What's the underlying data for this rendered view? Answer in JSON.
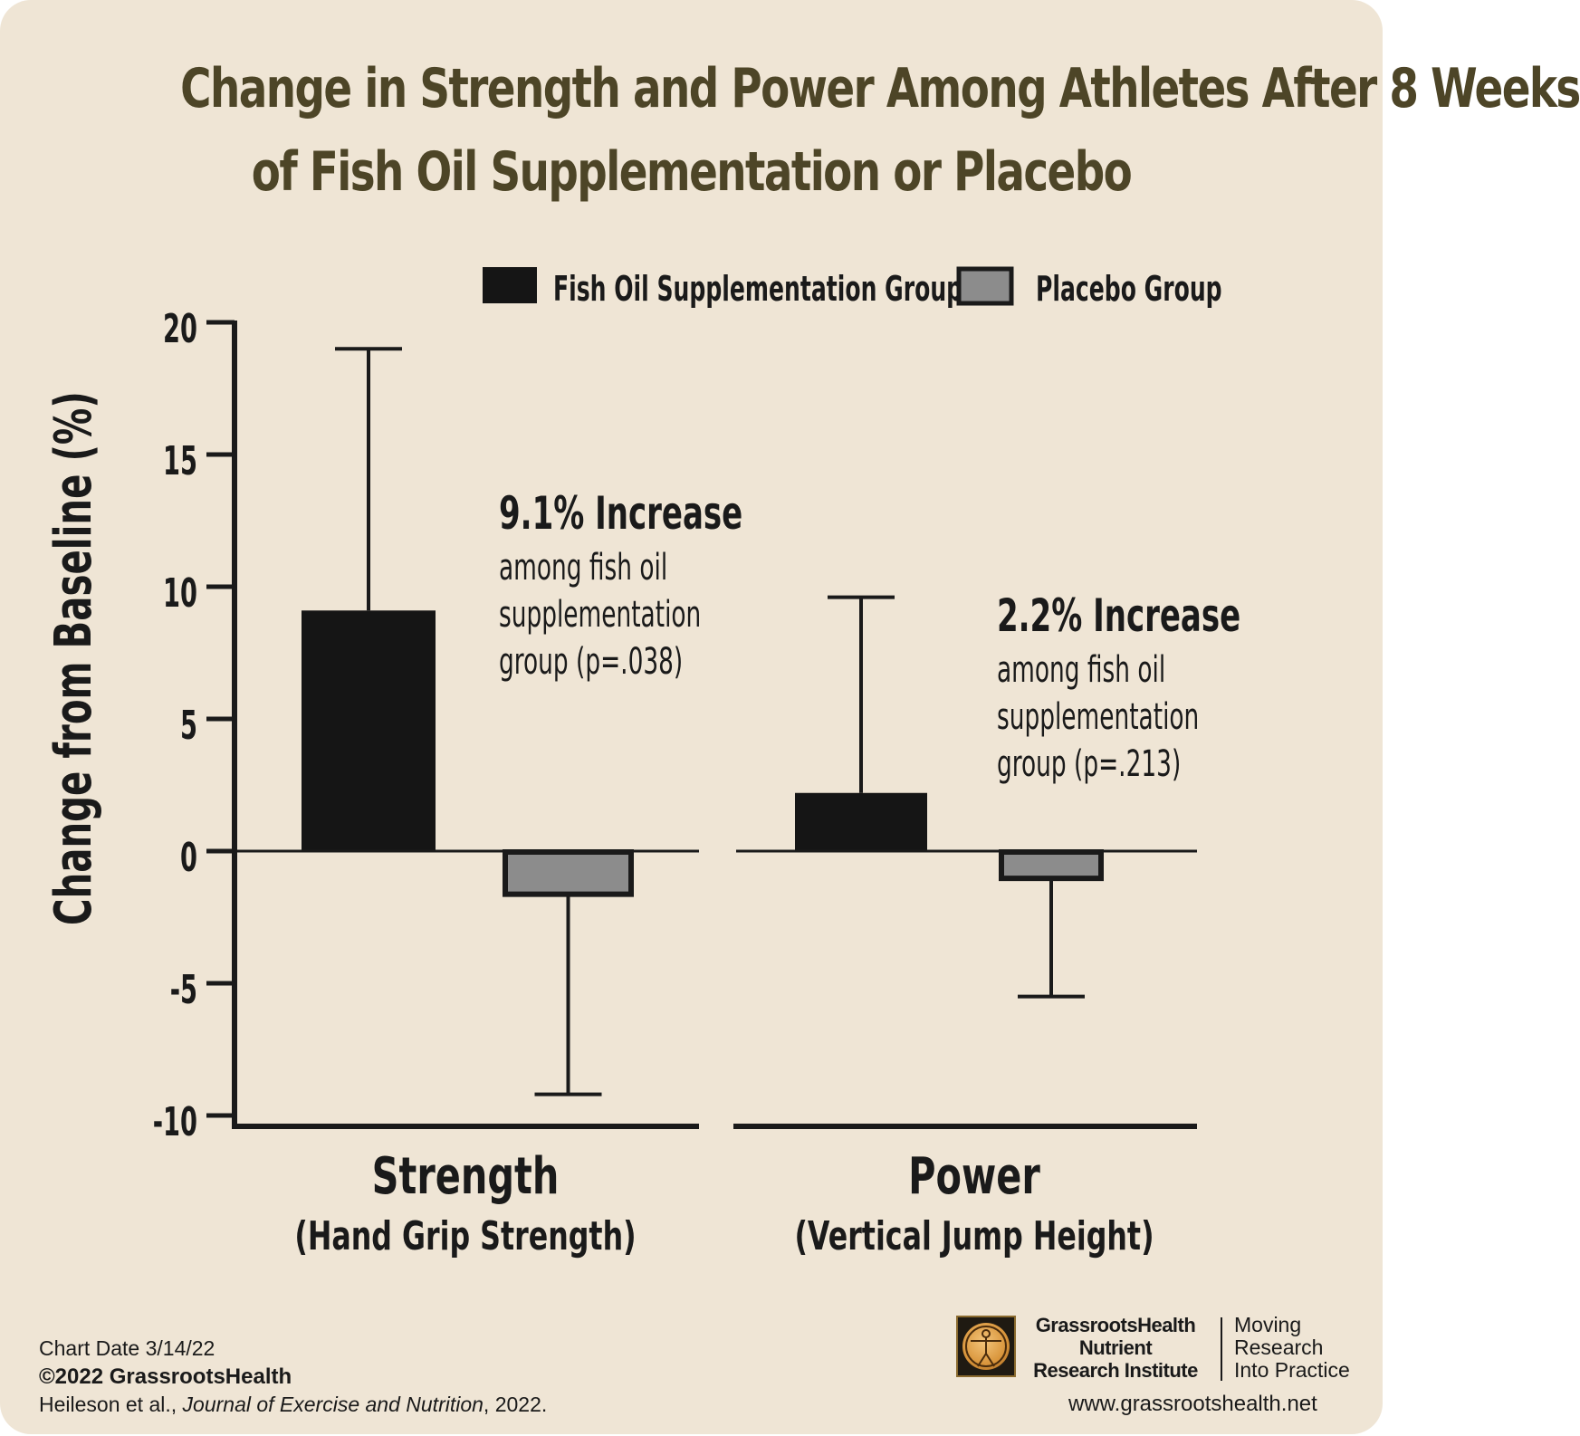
{
  "chart_data": {
    "type": "bar",
    "title": [
      "Change in Strength and Power Among Athletes After 8 Weeks",
      "of Fish Oil Supplementation or Placebo"
    ],
    "ylabel": "Change from Baseline (%)",
    "ylim": [
      -10,
      20
    ],
    "yticks": [
      20,
      15,
      10,
      5,
      0,
      -5,
      -10
    ],
    "legend": {
      "placement": "top-right",
      "items": [
        {
          "label": "Fish Oil Supplementation Group",
          "color": "#151515"
        },
        {
          "label": "Placebo Group",
          "color": "#8c8c8c"
        }
      ]
    },
    "groups": [
      {
        "label": "Strength",
        "sublabel": "(Hand Grip Strength)",
        "bars": [
          {
            "series": "Fish Oil Supplementation Group",
            "value": 9.1,
            "error_end": 19
          },
          {
            "series": "Placebo Group",
            "value": -1.7,
            "error_end": -9.2
          }
        ],
        "annotation": {
          "headline": "9.1% Increase",
          "lines": [
            "among fish oil",
            "supplementation",
            "group (p=.038)"
          ]
        }
      },
      {
        "label": "Power",
        "sublabel": "(Vertical Jump Height)",
        "bars": [
          {
            "series": "Fish Oil Supplementation Group",
            "value": 2.2,
            "error_end": 9.6
          },
          {
            "series": "Placebo Group",
            "value": -1.1,
            "error_end": -5.5
          }
        ],
        "annotation": {
          "headline": "2.2% Increase",
          "lines": [
            "among fish oil",
            "supplementation",
            "group (p=.213)"
          ]
        }
      }
    ]
  },
  "footer": {
    "chart_date": "Chart Date 3/14/22",
    "copyright": "©2022 GrassrootsHealth",
    "citation_authors": "Heileson et al.,",
    "citation_journal": "Journal of Exercise and Nutrition",
    "citation_year": ", 2022.",
    "org_lines": [
      "GrassrootsHealth",
      "Nutrient",
      "Research Institute"
    ],
    "tagline_lines": [
      "Moving",
      "Research",
      "Into Practice"
    ],
    "website": "www.grassrootshealth.net"
  },
  "colors": {
    "background": "#efe5d5",
    "title": "#4d4527",
    "fish_oil": "#151515",
    "placebo": "#8c8c8c",
    "axis": "#1a1a1a"
  }
}
